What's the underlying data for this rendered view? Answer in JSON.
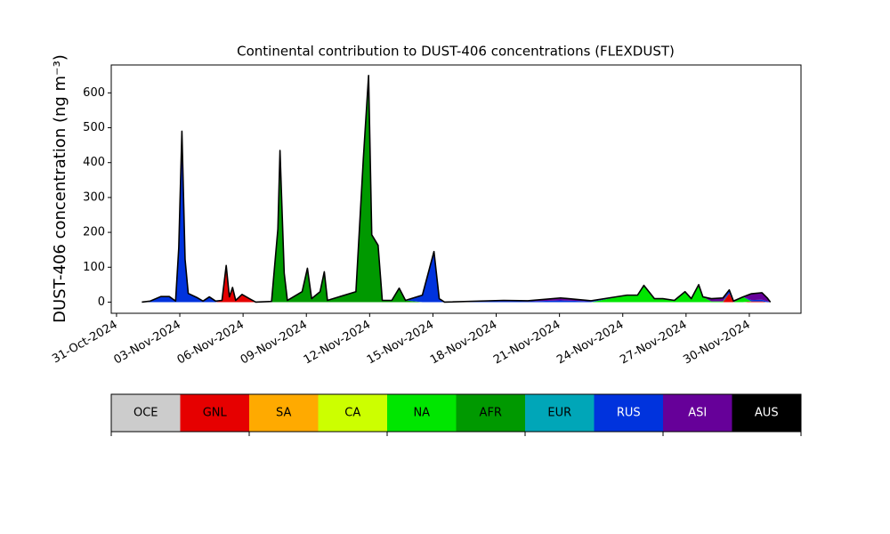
{
  "chart_data": {
    "type": "stacked_area",
    "title": "Continental contribution to DUST-406 concentrations (FLEXDUST)",
    "y_label": "DUST-406 concentration (ng m⁻³)",
    "x": [
      1.2,
      1.6,
      2.1,
      2.5,
      2.8,
      2.95,
      3.1,
      3.25,
      3.4,
      3.85,
      4.1,
      4.4,
      4.7,
      5.0,
      5.2,
      5.35,
      5.5,
      5.65,
      5.95,
      6.3,
      6.6,
      7.35,
      7.65,
      7.75,
      7.95,
      8.1,
      8.8,
      9.05,
      9.25,
      9.65,
      9.85,
      10.0,
      11.35,
      11.7,
      11.95,
      12.1,
      12.4,
      12.6,
      13.05,
      13.4,
      13.7,
      14.5,
      15.05,
      15.3,
      15.55,
      18.35,
      19.5,
      21.05,
      22.5,
      24.2,
      24.7,
      25.0,
      25.5,
      25.9,
      26.45,
      26.95,
      27.25,
      27.6,
      27.8,
      28.2,
      28.75,
      29.05,
      29.25,
      29.7,
      30.1,
      30.6,
      30.85,
      31.0
    ],
    "series": [
      {
        "name": "OCE",
        "color": "#cccccc",
        "values": [
          0,
          0,
          0,
          0,
          0,
          0,
          0,
          0,
          0,
          0,
          0,
          0,
          0,
          0,
          0,
          0,
          0,
          0,
          0,
          0,
          0,
          0,
          0,
          0,
          0,
          0,
          0,
          0,
          0,
          0,
          0,
          0,
          0,
          0,
          0,
          0,
          0,
          0,
          0,
          0,
          0,
          0,
          0,
          0,
          0,
          0,
          0,
          0,
          0,
          0,
          0,
          0,
          0,
          0,
          0,
          0,
          0,
          0,
          0,
          0,
          0,
          0,
          0,
          0,
          0,
          0,
          0,
          0
        ]
      },
      {
        "name": "GNL",
        "color": "#e60000",
        "values": [
          0,
          0,
          0,
          0,
          0,
          0,
          0,
          0,
          0,
          0,
          0,
          0,
          0,
          5,
          90,
          15,
          40,
          5,
          20,
          10,
          0,
          0,
          0,
          0,
          0,
          0,
          0,
          0,
          0,
          0,
          0,
          0,
          0,
          0,
          0,
          0,
          0,
          0,
          0,
          0,
          0,
          0,
          0,
          0,
          0,
          0,
          0,
          0,
          0,
          0,
          0,
          0,
          0,
          0,
          0,
          0,
          0,
          0,
          0,
          0,
          0,
          25,
          0,
          0,
          2,
          2,
          0,
          0
        ]
      },
      {
        "name": "SA",
        "color": "#ffaa00",
        "values": [
          0,
          0,
          0,
          0,
          0,
          0,
          0,
          0,
          0,
          0,
          0,
          0,
          0,
          0,
          0,
          0,
          0,
          0,
          0,
          0,
          0,
          0,
          0,
          0,
          0,
          0,
          0,
          0,
          0,
          0,
          0,
          0,
          0,
          0,
          0,
          0,
          0,
          0,
          0,
          0,
          0,
          0,
          0,
          0,
          0,
          0,
          0,
          0,
          0,
          0,
          0,
          0,
          0,
          0,
          0,
          0,
          0,
          0,
          0,
          0,
          0,
          0,
          0,
          0,
          0,
          0,
          0,
          0
        ]
      },
      {
        "name": "CA",
        "color": "#ccff00",
        "values": [
          0,
          0,
          0,
          0,
          0,
          0,
          0,
          0,
          0,
          0,
          0,
          0,
          0,
          0,
          0,
          0,
          0,
          0,
          0,
          0,
          0,
          0,
          0,
          0,
          0,
          0,
          0,
          0,
          0,
          0,
          0,
          0,
          0,
          0,
          0,
          0,
          0,
          0,
          0,
          0,
          0,
          0,
          0,
          0,
          0,
          0,
          0,
          0,
          0,
          0,
          0,
          0,
          0,
          0,
          0,
          0,
          0,
          0,
          0,
          0,
          0,
          0,
          0,
          0,
          0,
          0,
          0,
          0
        ]
      },
      {
        "name": "NA",
        "color": "#00e600",
        "values": [
          0,
          0,
          0,
          0,
          0,
          0,
          0,
          0,
          0,
          0,
          0,
          0,
          0,
          0,
          0,
          0,
          0,
          0,
          0,
          0,
          0,
          0,
          0,
          0,
          0,
          0,
          0,
          0,
          0,
          0,
          0,
          0,
          0,
          0,
          0,
          0,
          0,
          0,
          0,
          0,
          0,
          0,
          0,
          0,
          0,
          0,
          0,
          0,
          0,
          20,
          20,
          45,
          10,
          10,
          5,
          28,
          10,
          48,
          15,
          2,
          2,
          0,
          0,
          15,
          0,
          0,
          0,
          0
        ]
      },
      {
        "name": "AFR",
        "color": "#009900",
        "values": [
          0,
          0,
          0,
          0,
          0,
          0,
          0,
          0,
          0,
          0,
          0,
          0,
          0,
          0,
          0,
          0,
          0,
          0,
          0,
          0,
          0,
          2,
          200,
          400,
          80,
          5,
          30,
          95,
          10,
          30,
          85,
          5,
          30,
          400,
          620,
          190,
          160,
          5,
          5,
          40,
          5,
          0,
          0,
          0,
          0,
          0,
          0,
          0,
          0,
          0,
          0,
          0,
          0,
          0,
          0,
          0,
          0,
          0,
          0,
          0,
          0,
          0,
          0,
          0,
          0,
          0,
          0,
          0
        ]
      },
      {
        "name": "EUR",
        "color": "#00a6b8",
        "values": [
          0,
          0,
          0,
          0,
          0,
          0,
          0,
          0,
          0,
          0,
          0,
          0,
          0,
          0,
          0,
          0,
          0,
          0,
          0,
          0,
          0,
          0,
          0,
          0,
          0,
          0,
          0,
          0,
          0,
          0,
          0,
          0,
          0,
          0,
          0,
          0,
          0,
          0,
          0,
          0,
          0,
          0,
          0,
          0,
          0,
          0,
          0,
          0,
          0,
          0,
          0,
          0,
          0,
          0,
          0,
          0,
          0,
          0,
          0,
          0,
          0,
          0,
          0,
          0,
          0,
          0,
          0,
          0
        ]
      },
      {
        "name": "RUS",
        "color": "#0033dd",
        "values": [
          0,
          3,
          15,
          15,
          3,
          150,
          470,
          120,
          25,
          12,
          3,
          15,
          3,
          0,
          0,
          0,
          0,
          0,
          0,
          0,
          0,
          0,
          0,
          0,
          0,
          0,
          0,
          0,
          0,
          0,
          0,
          0,
          0,
          0,
          0,
          0,
          0,
          0,
          0,
          0,
          0,
          20,
          140,
          10,
          0,
          3,
          2,
          5,
          2,
          0,
          0,
          0,
          0,
          0,
          0,
          0,
          0,
          0,
          0,
          0,
          0,
          10,
          0,
          0,
          4,
          5,
          2,
          0
        ]
      },
      {
        "name": "ASI",
        "color": "#660099",
        "values": [
          0,
          0,
          0,
          0,
          0,
          0,
          0,
          0,
          0,
          0,
          0,
          0,
          0,
          0,
          0,
          0,
          0,
          0,
          0,
          0,
          0,
          0,
          0,
          0,
          0,
          0,
          0,
          0,
          0,
          0,
          0,
          0,
          0,
          0,
          0,
          0,
          0,
          0,
          0,
          0,
          0,
          0,
          0,
          0,
          0,
          2,
          2,
          5,
          2,
          0,
          0,
          0,
          0,
          0,
          0,
          0,
          0,
          0,
          0,
          8,
          10,
          0,
          3,
          0,
          18,
          20,
          10,
          0
        ]
      },
      {
        "name": "AUS",
        "color": "#000000",
        "values": [
          0,
          0,
          1,
          1,
          0,
          5,
          20,
          3,
          0,
          0,
          0,
          0,
          0,
          0,
          15,
          0,
          2,
          0,
          2,
          0,
          0,
          0,
          10,
          35,
          3,
          0,
          0,
          2,
          0,
          0,
          2,
          0,
          0,
          10,
          30,
          3,
          3,
          0,
          0,
          0,
          0,
          0,
          5,
          0,
          0,
          0,
          0,
          2,
          0,
          0,
          0,
          3,
          0,
          0,
          0,
          2,
          0,
          2,
          0,
          0,
          0,
          0,
          0,
          0,
          0,
          0,
          0,
          0
        ]
      }
    ],
    "xlim": [
      -0.25,
      32.45
    ],
    "xticks": [
      {
        "value": 0,
        "label": "31-Oct-2024"
      },
      {
        "value": 3,
        "label": "03-Nov-2024"
      },
      {
        "value": 6,
        "label": "06-Nov-2024"
      },
      {
        "value": 9,
        "label": "09-Nov-2024"
      },
      {
        "value": 12,
        "label": "12-Nov-2024"
      },
      {
        "value": 15,
        "label": "15-Nov-2024"
      },
      {
        "value": 18,
        "label": "18-Nov-2024"
      },
      {
        "value": 21,
        "label": "21-Nov-2024"
      },
      {
        "value": 24,
        "label": "24-Nov-2024"
      },
      {
        "value": 27,
        "label": "27-Nov-2024"
      },
      {
        "value": 30,
        "label": "30-Nov-2024"
      }
    ],
    "ylim": [
      -32,
      680
    ],
    "yticks": [
      0,
      100,
      200,
      300,
      400,
      500,
      600
    ],
    "grid": false,
    "legend": "bottom"
  }
}
